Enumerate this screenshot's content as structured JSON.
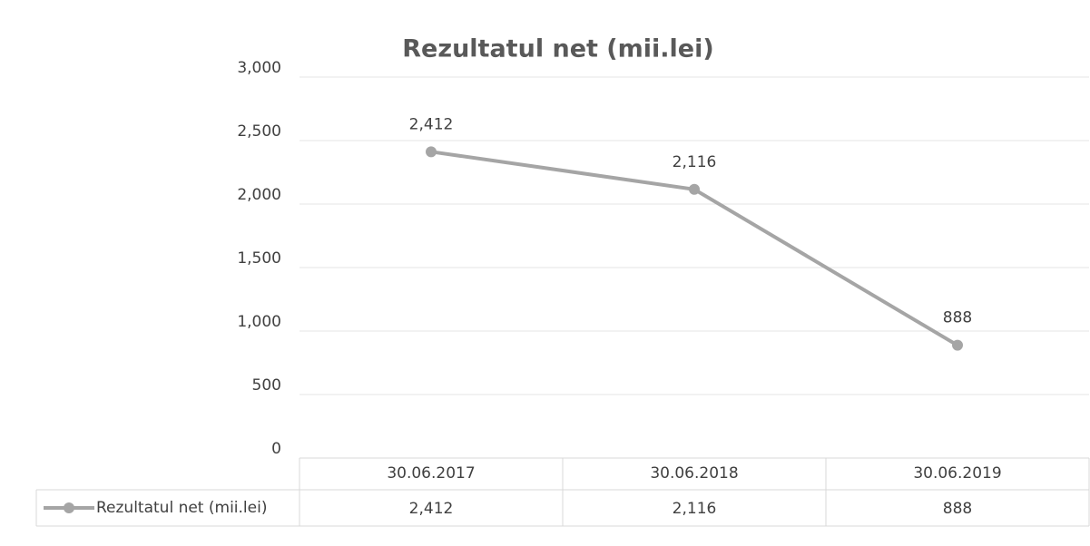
{
  "chart_data": {
    "type": "line",
    "title": "Rezultatul net (mii.lei)",
    "categories": [
      "30.06.2017",
      "30.06.2018",
      "30.06.2019"
    ],
    "series": [
      {
        "name": "Rezultatul net (mii.lei)",
        "color": "#a5a5a5",
        "values": [
          2412,
          2116,
          888
        ],
        "value_labels": [
          "2,412",
          "2,116",
          "888"
        ]
      }
    ],
    "ylim": [
      0,
      3000
    ],
    "yticks": [
      0,
      500,
      {
        "value": 1000,
        "label": "1,000"
      },
      {
        "value": 1500,
        "label": "1,500"
      },
      {
        "value": 2000,
        "label": "2,000"
      },
      {
        "value": 2500,
        "label": "2,500"
      },
      {
        "value": 3000,
        "label": "3,000"
      }
    ],
    "grid": true,
    "legend": "bottom"
  }
}
